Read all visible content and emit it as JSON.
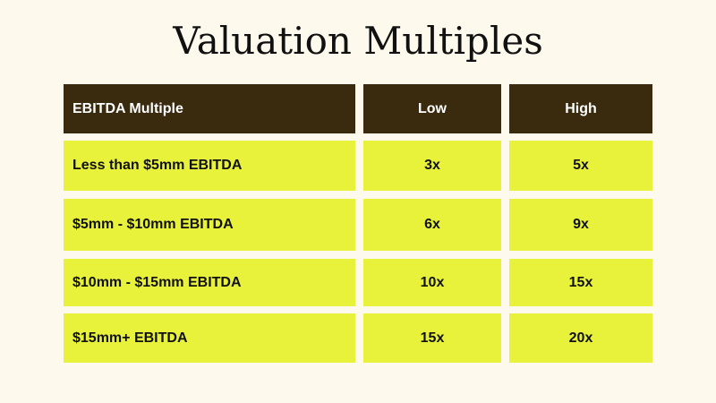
{
  "title": "Valuation Multiples",
  "colors": {
    "background": "#fdf9ec",
    "header_bg": "#3a2a0e",
    "row_bg": "#e8f23a",
    "header_text": "#ffffff",
    "body_text": "#111111"
  },
  "table": {
    "headers": [
      "EBITDA Multiple",
      "Low",
      "High"
    ],
    "rows": [
      [
        "Less than $5mm EBITDA",
        "3x",
        "5x"
      ],
      [
        "$5mm - $10mm EBITDA",
        "6x",
        "9x"
      ],
      [
        "$10mm - $15mm EBITDA",
        "10x",
        "15x"
      ],
      [
        "$15mm+ EBITDA",
        "15x",
        "20x"
      ]
    ]
  }
}
